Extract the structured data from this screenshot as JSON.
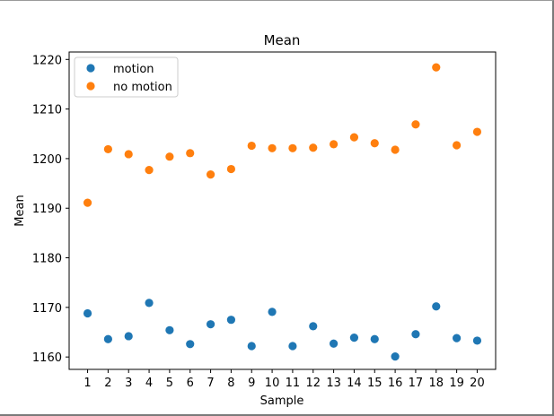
{
  "chart_data": {
    "type": "scatter",
    "title": "Mean",
    "xlabel": "Sample",
    "ylabel": "Mean",
    "x": [
      1,
      2,
      3,
      4,
      5,
      6,
      7,
      8,
      9,
      10,
      11,
      12,
      13,
      14,
      15,
      16,
      17,
      18,
      19,
      20
    ],
    "xlim": [
      0.1,
      20.9
    ],
    "ylim": [
      1157.5,
      1221.5
    ],
    "yticks": [
      1160,
      1170,
      1180,
      1190,
      1200,
      1210,
      1220
    ],
    "grid": false,
    "legend": "top-left",
    "series": [
      {
        "name": "motion",
        "color": "#1f77b4",
        "values": [
          1168.8,
          1163.6,
          1164.2,
          1170.9,
          1165.4,
          1162.6,
          1166.6,
          1167.5,
          1162.2,
          1169.1,
          1162.2,
          1166.2,
          1162.7,
          1163.9,
          1163.6,
          1160.1,
          1164.6,
          1170.2,
          1163.8,
          1163.3
        ]
      },
      {
        "name": "no motion",
        "color": "#ff7f0e",
        "values": [
          1191.1,
          1201.9,
          1200.9,
          1197.7,
          1200.4,
          1201.1,
          1196.8,
          1197.9,
          1202.6,
          1202.1,
          1202.1,
          1202.2,
          1202.9,
          1204.3,
          1203.1,
          1201.8,
          1206.9,
          1218.4,
          1202.7,
          1205.4
        ]
      }
    ]
  }
}
